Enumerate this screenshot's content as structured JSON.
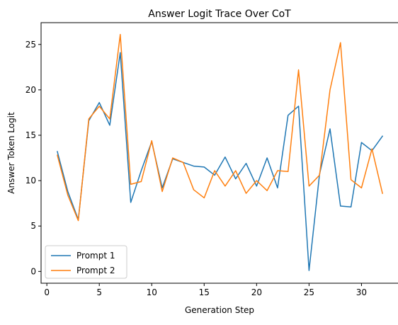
{
  "chart_data": {
    "type": "line",
    "title": "Answer Logit Trace Over CoT",
    "xlabel": "Generation Step",
    "ylabel": "Answer Token Logit",
    "xlim": [
      -0.55,
      33.55
    ],
    "ylim": [
      -1.3,
      27.4
    ],
    "xticks": [
      0,
      5,
      10,
      15,
      20,
      25,
      30
    ],
    "yticks": [
      0,
      5,
      10,
      15,
      20,
      25
    ],
    "grid": false,
    "legend_position": "lower-left",
    "x": [
      1,
      2,
      3,
      4,
      5,
      6,
      7,
      8,
      9,
      10,
      11,
      12,
      13,
      14,
      15,
      16,
      17,
      18,
      19,
      20,
      21,
      22,
      23,
      24,
      25,
      26,
      27,
      28,
      29,
      30,
      31,
      32
    ],
    "series": [
      {
        "name": "Prompt 1",
        "color": "#1f77b4",
        "values": [
          13.2,
          8.8,
          5.7,
          16.6,
          18.6,
          16.1,
          24.1,
          7.6,
          11.1,
          14.3,
          9.2,
          12.4,
          12.0,
          11.6,
          11.5,
          10.6,
          12.6,
          10.2,
          11.9,
          9.4,
          12.5,
          9.2,
          17.2,
          18.2,
          0.1,
          10.7,
          15.7,
          7.2,
          7.1,
          14.2,
          13.3,
          14.9
        ]
      },
      {
        "name": "Prompt 2",
        "color": "#ff7f0e",
        "values": [
          12.8,
          8.4,
          5.6,
          16.8,
          18.2,
          16.8,
          26.1,
          9.6,
          9.9,
          14.4,
          8.8,
          12.5,
          12.0,
          9.0,
          8.1,
          11.1,
          9.4,
          11.1,
          8.6,
          10.0,
          8.9,
          11.1,
          11.0,
          22.2,
          9.4,
          10.6,
          20.0,
          25.2,
          10.1,
          9.2,
          13.5,
          8.6
        ]
      }
    ]
  }
}
